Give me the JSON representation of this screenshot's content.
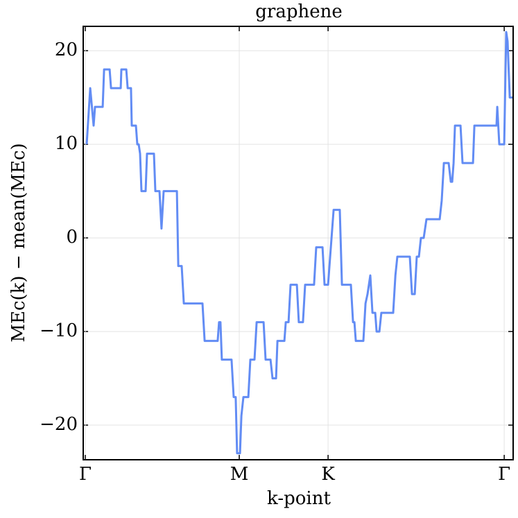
{
  "chart_data": {
    "type": "line",
    "title": "graphene",
    "xlabel": "k-point",
    "ylabel": "MEc(k) − mean(MEc)",
    "x": [
      0.009,
      0.032,
      0.054,
      0.063,
      0.113,
      0.122,
      0.158,
      0.167,
      0.23,
      0.234,
      0.266,
      0.275,
      0.297,
      0.302,
      0.329,
      0.338,
      0.347,
      0.356,
      0.365,
      0.392,
      0.401,
      0.446,
      0.455,
      0.482,
      0.495,
      0.509,
      0.595,
      0.604,
      0.626,
      0.64,
      0.761,
      0.775,
      0.86,
      0.869,
      0.878,
      0.887,
      0.95,
      0.964,
      0.977,
      0.986,
      1.005,
      1.014,
      1.027,
      1.059,
      1.072,
      1.099,
      1.113,
      1.158,
      1.171,
      1.203,
      1.216,
      1.239,
      1.248,
      1.293,
      1.302,
      1.32,
      1.333,
      1.374,
      1.387,
      1.414,
      1.428,
      1.486,
      1.5,
      1.541,
      1.554,
      1.577,
      1.613,
      1.653,
      1.667,
      1.725,
      1.739,
      1.748,
      1.757,
      1.806,
      1.82,
      1.833,
      1.851,
      1.865,
      1.883,
      1.892,
      1.91,
      1.923,
      2.0,
      2.014,
      2.027,
      2.108,
      2.122,
      2.14,
      2.153,
      2.167,
      2.18,
      2.198,
      2.216,
      2.302,
      2.315,
      2.329,
      2.36,
      2.374,
      2.383,
      2.392,
      2.401,
      2.437,
      2.45,
      2.518,
      2.527,
      2.671,
      2.676,
      2.689,
      2.721,
      2.734,
      2.743,
      2.757,
      2.779
    ],
    "series": [
      {
        "color": "#628cf4",
        "values": [
          10,
          16,
          12,
          14,
          14,
          18,
          18,
          16,
          16,
          18,
          18,
          16,
          16,
          12,
          12,
          10,
          10,
          9,
          5,
          5,
          9,
          9,
          5,
          5,
          1,
          5,
          5,
          -3,
          -3,
          -7,
          -7,
          -11,
          -11,
          -9,
          -9,
          -13,
          -13,
          -17,
          -17,
          -23,
          -23,
          -19,
          -17,
          -17,
          -13,
          -13,
          -9,
          -9,
          -13,
          -13,
          -15,
          -15,
          -11,
          -11,
          -9,
          -9,
          -5,
          -5,
          -9,
          -9,
          -5,
          -5,
          -1,
          -1,
          -5,
          -5,
          3,
          3,
          -5,
          -5,
          -9,
          -9,
          -11,
          -11,
          -7,
          -6,
          -4,
          -8,
          -8,
          -10,
          -10,
          -8,
          -8,
          -4,
          -2,
          -2,
          -6,
          -6,
          -2,
          -2,
          0,
          0,
          2,
          2,
          4,
          8,
          8,
          6,
          6,
          8,
          12,
          12,
          8,
          8,
          12,
          12,
          14,
          10,
          10,
          22,
          21,
          15,
          15
        ]
      }
    ],
    "xlim": [
      -0.0135,
      2.779
    ],
    "xticks": [
      {
        "value": 0,
        "label": "Γ"
      },
      {
        "value": 1,
        "label": "M"
      },
      {
        "value": 1.577,
        "label": "K"
      },
      {
        "value": 2.721,
        "label": "Γ"
      }
    ],
    "ylim": [
      -23.7,
      22.6
    ],
    "yticks": [
      {
        "value": -20,
        "label": "−20"
      },
      {
        "value": -10,
        "label": "−10"
      },
      0,
      10,
      20
    ],
    "grid": true
  }
}
